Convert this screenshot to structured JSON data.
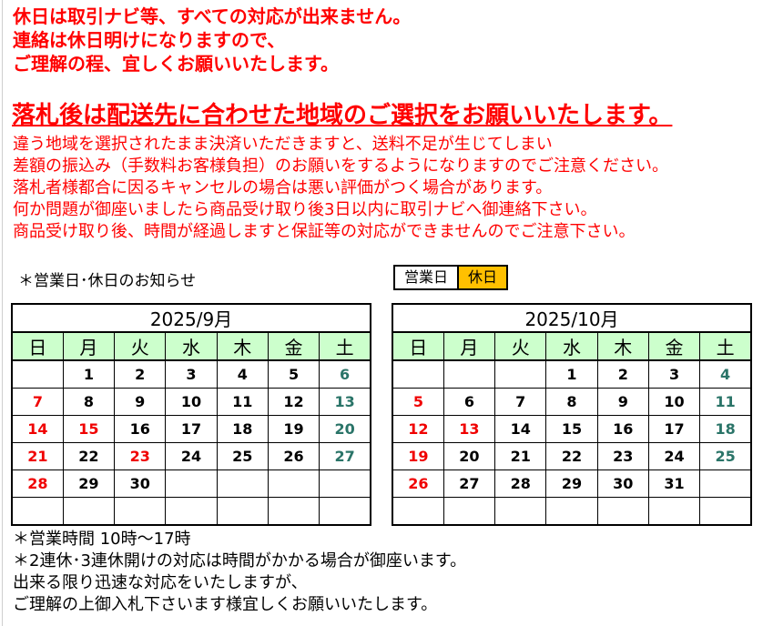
{
  "page": {
    "top_notice": [
      "休日は取引ナビ等、すべての対応が出来ません。",
      "連絡は休日明けになりますので、",
      "ご理解の程、宜しくお願いいたします。"
    ],
    "headline": "落札後は配送先に合わせた地域のご選択をお願いいたします。",
    "body_notice": [
      "違う地域を選択されたまま決済いただきますと、送料不足が生じてしまい",
      "差額の振込み（手数料お客様負担）のお願いをするようになりますのでご注意ください。",
      "落札者様都合に因るキャンセルの場合は悪い評価がつく場合があります。",
      "何か問題が御座いましたら商品受け取り後3日以内に取引ナビへ御連絡下さい。",
      "商品受け取り後、時間が経過しますと保証等の対応ができませんのでご注意下さい。"
    ],
    "schedule_label": "＊営業日･休日のお知らせ",
    "legend": {
      "open": "営業日",
      "closed": "休日"
    },
    "bottom_notice": [
      "＊営業時間 10時～17時",
      "＊2連休･3連休開けの対応は時間がかかる場合が御座います。",
      "出来る限り迅速な対応をいたしますが、",
      "ご理解の上御入札下さいます様宜しくお願いいたします。"
    ]
  },
  "colors": {
    "notice_red": "#FF0000",
    "closed_bg": "#FFC000",
    "weekday_header_bg": "#CCFFCC",
    "sunday_text": "#F00000",
    "saturday_text": "#2A7468"
  },
  "calendars": [
    {
      "title": "2025/9月",
      "weekday_headers": [
        "日",
        "月",
        "火",
        "水",
        "木",
        "金",
        "土"
      ],
      "weeks": [
        [
          {
            "d": "",
            "t": "empty"
          },
          {
            "d": "1",
            "t": "open"
          },
          {
            "d": "2",
            "t": "open"
          },
          {
            "d": "3",
            "t": "open"
          },
          {
            "d": "4",
            "t": "open"
          },
          {
            "d": "5",
            "t": "open"
          },
          {
            "d": "6",
            "t": "closed-sat"
          }
        ],
        [
          {
            "d": "7",
            "t": "closed-sun"
          },
          {
            "d": "8",
            "t": "open"
          },
          {
            "d": "9",
            "t": "open"
          },
          {
            "d": "10",
            "t": "open"
          },
          {
            "d": "11",
            "t": "open"
          },
          {
            "d": "12",
            "t": "open"
          },
          {
            "d": "13",
            "t": "closed-sat"
          }
        ],
        [
          {
            "d": "14",
            "t": "closed-sun"
          },
          {
            "d": "15",
            "t": "closed-sun"
          },
          {
            "d": "16",
            "t": "open"
          },
          {
            "d": "17",
            "t": "open"
          },
          {
            "d": "18",
            "t": "open"
          },
          {
            "d": "19",
            "t": "open"
          },
          {
            "d": "20",
            "t": "closed-sat"
          }
        ],
        [
          {
            "d": "21",
            "t": "closed-sun"
          },
          {
            "d": "22",
            "t": "closed"
          },
          {
            "d": "23",
            "t": "closed-sun"
          },
          {
            "d": "24",
            "t": "open"
          },
          {
            "d": "25",
            "t": "open"
          },
          {
            "d": "26",
            "t": "open"
          },
          {
            "d": "27",
            "t": "closed-sat"
          }
        ],
        [
          {
            "d": "28",
            "t": "closed-sun"
          },
          {
            "d": "29",
            "t": "open"
          },
          {
            "d": "30",
            "t": "open"
          },
          {
            "d": "",
            "t": "empty"
          },
          {
            "d": "",
            "t": "empty"
          },
          {
            "d": "",
            "t": "empty"
          },
          {
            "d": "",
            "t": "empty"
          }
        ],
        [
          {
            "d": "",
            "t": "empty"
          },
          {
            "d": "",
            "t": "empty"
          },
          {
            "d": "",
            "t": "empty"
          },
          {
            "d": "",
            "t": "empty"
          },
          {
            "d": "",
            "t": "empty"
          },
          {
            "d": "",
            "t": "empty"
          },
          {
            "d": "",
            "t": "empty"
          }
        ]
      ]
    },
    {
      "title": "2025/10月",
      "weekday_headers": [
        "日",
        "月",
        "火",
        "水",
        "木",
        "金",
        "土"
      ],
      "weeks": [
        [
          {
            "d": "",
            "t": "empty"
          },
          {
            "d": "",
            "t": "empty"
          },
          {
            "d": "",
            "t": "empty"
          },
          {
            "d": "1",
            "t": "open"
          },
          {
            "d": "2",
            "t": "open"
          },
          {
            "d": "3",
            "t": "open"
          },
          {
            "d": "4",
            "t": "closed-sat"
          }
        ],
        [
          {
            "d": "5",
            "t": "closed-sun"
          },
          {
            "d": "6",
            "t": "open"
          },
          {
            "d": "7",
            "t": "open"
          },
          {
            "d": "8",
            "t": "open"
          },
          {
            "d": "9",
            "t": "open"
          },
          {
            "d": "10",
            "t": "open"
          },
          {
            "d": "11",
            "t": "closed-sat"
          }
        ],
        [
          {
            "d": "12",
            "t": "closed-sun"
          },
          {
            "d": "13",
            "t": "closed-sun"
          },
          {
            "d": "14",
            "t": "open"
          },
          {
            "d": "15",
            "t": "open"
          },
          {
            "d": "16",
            "t": "open"
          },
          {
            "d": "17",
            "t": "open"
          },
          {
            "d": "18",
            "t": "closed-sat"
          }
        ],
        [
          {
            "d": "19",
            "t": "closed-sun"
          },
          {
            "d": "20",
            "t": "open"
          },
          {
            "d": "21",
            "t": "open"
          },
          {
            "d": "22",
            "t": "open"
          },
          {
            "d": "23",
            "t": "open"
          },
          {
            "d": "24",
            "t": "open"
          },
          {
            "d": "25",
            "t": "closed-sat"
          }
        ],
        [
          {
            "d": "26",
            "t": "closed-sun"
          },
          {
            "d": "27",
            "t": "closed"
          },
          {
            "d": "28",
            "t": "open"
          },
          {
            "d": "29",
            "t": "open"
          },
          {
            "d": "30",
            "t": "open"
          },
          {
            "d": "31",
            "t": "open"
          },
          {
            "d": "",
            "t": "empty"
          }
        ],
        [
          {
            "d": "",
            "t": "empty"
          },
          {
            "d": "",
            "t": "empty"
          },
          {
            "d": "",
            "t": "empty"
          },
          {
            "d": "",
            "t": "empty"
          },
          {
            "d": "",
            "t": "empty"
          },
          {
            "d": "",
            "t": "empty"
          },
          {
            "d": "",
            "t": "empty"
          }
        ]
      ]
    }
  ]
}
